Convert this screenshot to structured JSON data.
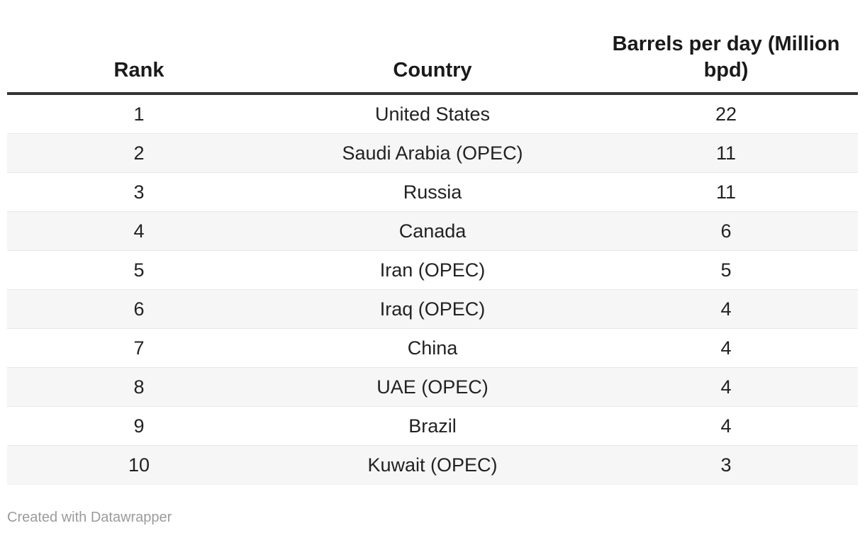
{
  "chart_data": {
    "type": "table",
    "columns": [
      "Rank",
      "Country",
      "Barrels per day (Million bpd)"
    ],
    "rows": [
      {
        "rank": "1",
        "country": "United States",
        "bpd": "22"
      },
      {
        "rank": "2",
        "country": "Saudi Arabia (OPEC)",
        "bpd": "11"
      },
      {
        "rank": "3",
        "country": "Russia",
        "bpd": "11"
      },
      {
        "rank": "4",
        "country": "Canada",
        "bpd": "6"
      },
      {
        "rank": "5",
        "country": "Iran (OPEC)",
        "bpd": "5"
      },
      {
        "rank": "6",
        "country": "Iraq (OPEC)",
        "bpd": "4"
      },
      {
        "rank": "7",
        "country": "China",
        "bpd": "4"
      },
      {
        "rank": "8",
        "country": "UAE (OPEC)",
        "bpd": "4"
      },
      {
        "rank": "9",
        "country": "Brazil",
        "bpd": "4"
      },
      {
        "rank": "10",
        "country": "Kuwait (OPEC)",
        "bpd": "3"
      }
    ],
    "layout_hints": {
      "zebra_striping": true,
      "header_rule": "thick-dark",
      "cell_alignment": "center"
    }
  },
  "colors": {
    "stripe": "#f6f6f6",
    "row_divider": "#e8e8e8",
    "header_rule": "#333333",
    "body_text": "#222222",
    "header_text": "#1a1a1a",
    "attribution_text": "#9b9b9b",
    "background": "#ffffff"
  },
  "footer": {
    "attribution": "Created with Datawrapper"
  }
}
